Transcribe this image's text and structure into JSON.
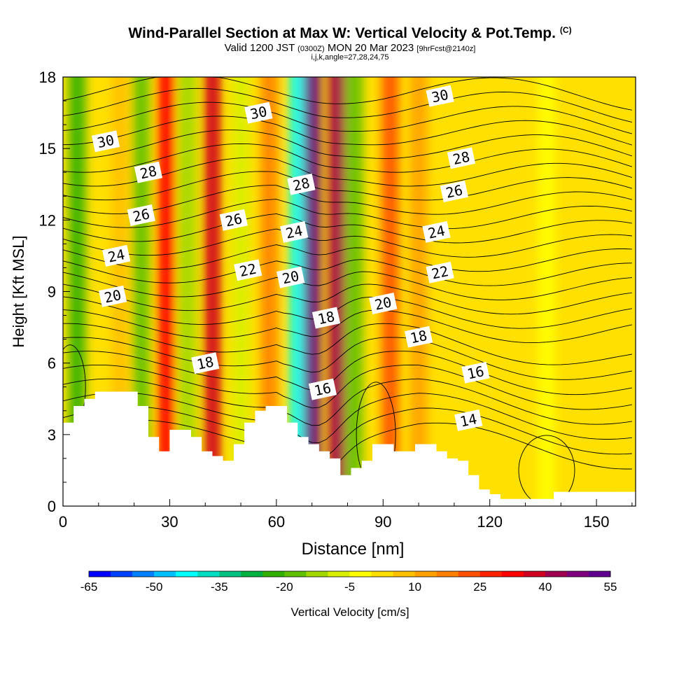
{
  "title_main": "Wind-Parallel Section at Max W: Vertical Velocity & Pot.Temp.",
  "title_copyright": "(C)",
  "valid_prefix": "Valid 1200 JST",
  "valid_utc": "(0300Z)",
  "valid_date": "MON 20 Mar 2023",
  "valid_fcst": "[9hrFcst@2140z]",
  "subtitle_params": "i,j,k,angle=27,28,24,75",
  "chart_data": {
    "type": "contour",
    "title": "Wind-Parallel Section at Max W: Vertical Velocity & Pot.Temp.",
    "xlabel": "Distance [nm]",
    "ylabel": "Height [Kft MSL]",
    "xlim": [
      0,
      161
    ],
    "ylim": [
      0,
      18
    ],
    "xticks": [
      0,
      30,
      60,
      90,
      120,
      150
    ],
    "yticks": [
      0,
      3,
      6,
      9,
      12,
      15,
      18
    ],
    "colorbar": {
      "label": "Vertical Velocity [cm/s]",
      "tick_labels": [
        "-65",
        "-50",
        "-35",
        "-20",
        "-5",
        "10",
        "25",
        "40",
        "55"
      ],
      "colors": [
        "#0000ff",
        "#0040ff",
        "#0080ff",
        "#00c0ff",
        "#00ffff",
        "#00e0c0",
        "#00c080",
        "#00b040",
        "#30b000",
        "#60c000",
        "#a0d800",
        "#d8f000",
        "#ffff00",
        "#ffe000",
        "#ffc000",
        "#ffa000",
        "#ff8000",
        "#ff5000",
        "#ff2000",
        "#ff0000",
        "#d00020",
        "#a00050",
        "#800080",
        "#600090"
      ]
    },
    "velocity_columns": [
      {
        "x": 4,
        "value": -25
      },
      {
        "x": 16,
        "value": 5
      },
      {
        "x": 22,
        "value": -20
      },
      {
        "x": 29,
        "value": 30
      },
      {
        "x": 35,
        "value": -15
      },
      {
        "x": 42,
        "value": 35
      },
      {
        "x": 50,
        "value": -10
      },
      {
        "x": 58,
        "value": 15
      },
      {
        "x": 66,
        "value": -45
      },
      {
        "x": 70,
        "value": 55
      },
      {
        "x": 77,
        "value": 40
      },
      {
        "x": 82,
        "value": -20
      },
      {
        "x": 92,
        "value": 20
      },
      {
        "x": 100,
        "value": 10
      },
      {
        "x": 113,
        "value": 0
      },
      {
        "x": 136,
        "value": -5
      },
      {
        "x": 158,
        "value": 2
      }
    ],
    "terrain_kft": [
      [
        0,
        3.5
      ],
      [
        3,
        4.2
      ],
      [
        6,
        4.5
      ],
      [
        9,
        4.8
      ],
      [
        21,
        4.2
      ],
      [
        24,
        2.9
      ],
      [
        27,
        2.3
      ],
      [
        30,
        3.2
      ],
      [
        36,
        2.9
      ],
      [
        39,
        2.3
      ],
      [
        42,
        2.1
      ],
      [
        45,
        1.9
      ],
      [
        48,
        2.6
      ],
      [
        51,
        3.5
      ],
      [
        54,
        4.0
      ],
      [
        57,
        4.2
      ],
      [
        63,
        3.5
      ],
      [
        66,
        2.9
      ],
      [
        69,
        2.6
      ],
      [
        72,
        2.3
      ],
      [
        75,
        2.0
      ],
      [
        78,
        1.3
      ],
      [
        81,
        1.6
      ],
      [
        84,
        1.9
      ],
      [
        87,
        2.6
      ],
      [
        93,
        2.3
      ],
      [
        99,
        2.6
      ],
      [
        105,
        2.3
      ],
      [
        108,
        2.0
      ],
      [
        111,
        1.9
      ],
      [
        114,
        1.3
      ],
      [
        117,
        0.7
      ],
      [
        120,
        0.5
      ],
      [
        123,
        0.3
      ],
      [
        135,
        0.3
      ],
      [
        138,
        0.6
      ],
      [
        141,
        0.6
      ],
      [
        161,
        0.6
      ]
    ],
    "theta_contour_labels": [
      {
        "value": "30",
        "x": 12,
        "y": 15.3
      },
      {
        "value": "28",
        "x": 24,
        "y": 14.0
      },
      {
        "value": "26",
        "x": 22,
        "y": 12.2
      },
      {
        "value": "24",
        "x": 15,
        "y": 10.5
      },
      {
        "value": "20",
        "x": 14,
        "y": 8.8
      },
      {
        "value": "30",
        "x": 55,
        "y": 16.5
      },
      {
        "value": "26",
        "x": 48,
        "y": 12.0
      },
      {
        "value": "22",
        "x": 52,
        "y": 9.9
      },
      {
        "value": "28",
        "x": 67,
        "y": 13.5
      },
      {
        "value": "24",
        "x": 65,
        "y": 11.5
      },
      {
        "value": "20",
        "x": 64,
        "y": 9.6
      },
      {
        "value": "18",
        "x": 74,
        "y": 7.9
      },
      {
        "value": "18",
        "x": 40,
        "y": 6.0
      },
      {
        "value": "16",
        "x": 73,
        "y": 4.9
      },
      {
        "value": "30",
        "x": 106,
        "y": 17.2
      },
      {
        "value": "28",
        "x": 112,
        "y": 14.6
      },
      {
        "value": "26",
        "x": 110,
        "y": 13.2
      },
      {
        "value": "24",
        "x": 105,
        "y": 11.5
      },
      {
        "value": "22",
        "x": 106,
        "y": 9.8
      },
      {
        "value": "20",
        "x": 90,
        "y": 8.5
      },
      {
        "value": "18",
        "x": 100,
        "y": 7.1
      },
      {
        "value": "16",
        "x": 116,
        "y": 5.6
      },
      {
        "value": "14",
        "x": 114,
        "y": 3.6
      }
    ]
  }
}
